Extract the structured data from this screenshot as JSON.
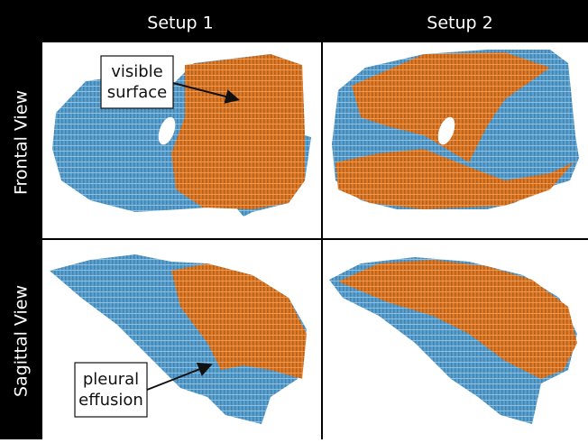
{
  "columns": [
    "Setup 1",
    "Setup 2"
  ],
  "rows": [
    "Frontal View",
    "Sagittal View"
  ],
  "annotations": [
    {
      "lines": [
        "visible",
        "surface"
      ]
    },
    {
      "lines": [
        "pleural",
        "effusion"
      ]
    }
  ]
}
